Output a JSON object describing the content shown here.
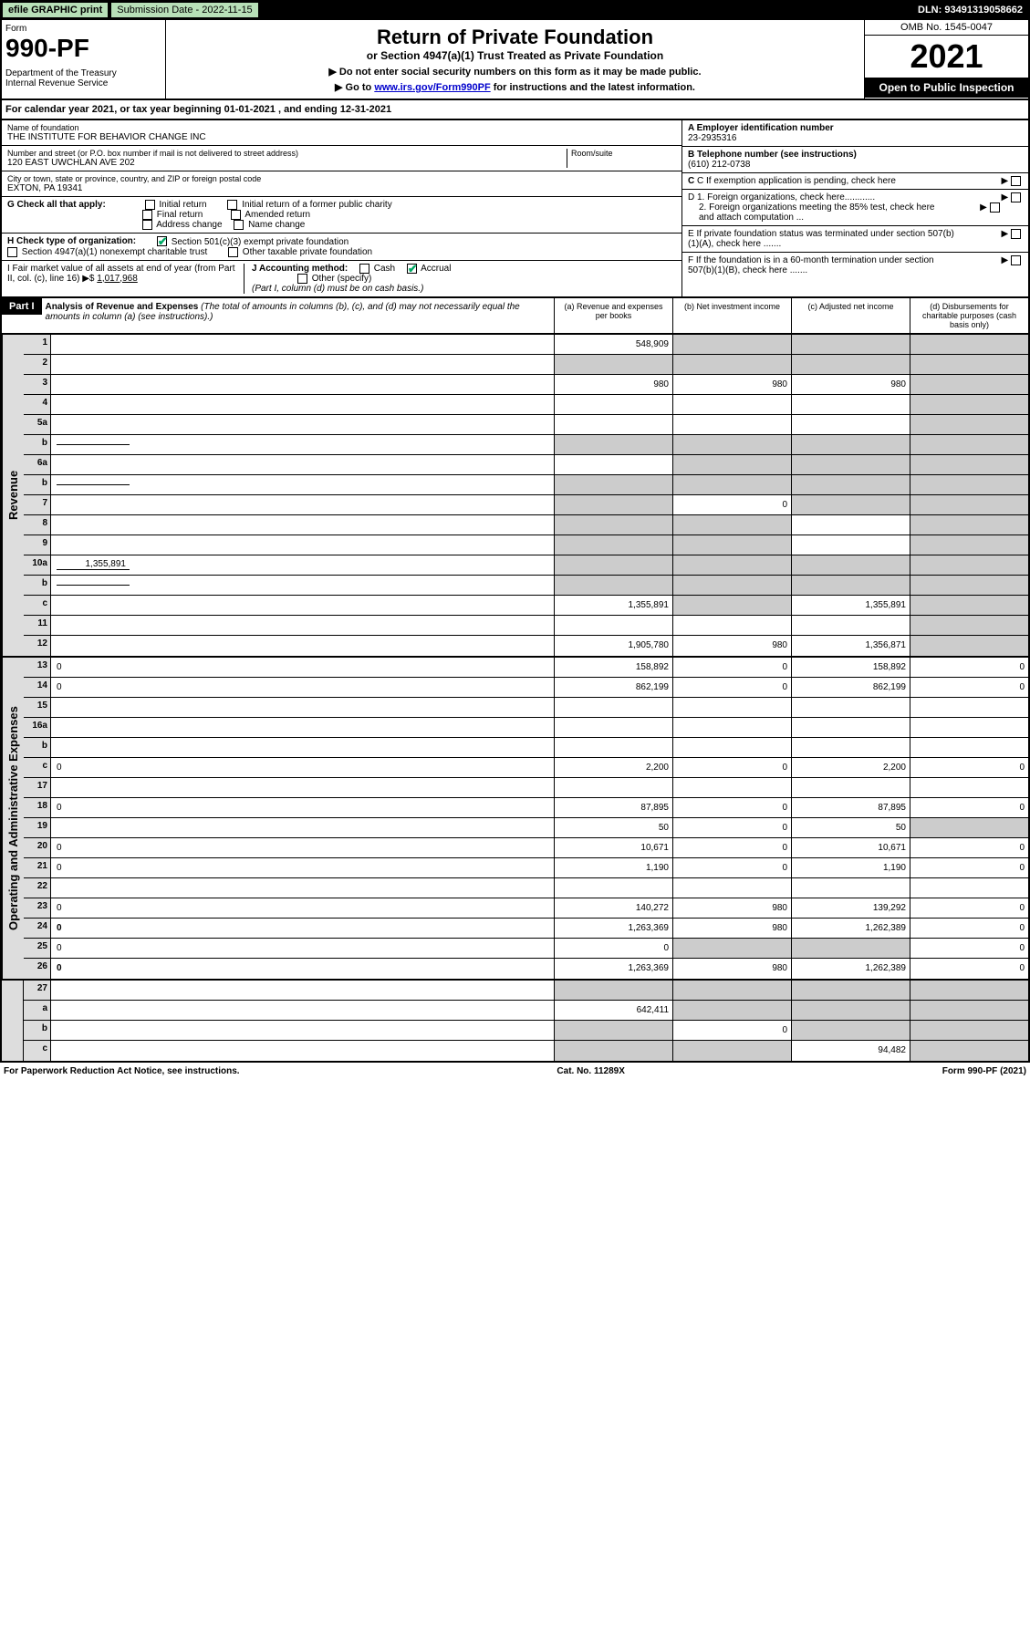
{
  "topbar": {
    "efile": "efile GRAPHIC print",
    "submission": "Submission Date - 2022-11-15",
    "dln": "DLN: 93491319058662"
  },
  "header": {
    "form_label": "Form",
    "form_no": "990-PF",
    "dept": "Department of the Treasury\nInternal Revenue Service",
    "title": "Return of Private Foundation",
    "subtitle": "or Section 4947(a)(1) Trust Treated as Private Foundation",
    "note1": "▶ Do not enter social security numbers on this form as it may be made public.",
    "note2_pre": "▶ Go to ",
    "note2_link": "www.irs.gov/Form990PF",
    "note2_post": " for instructions and the latest information.",
    "omb": "OMB No. 1545-0047",
    "year": "2021",
    "open": "Open to Public Inspection"
  },
  "cal_year": "For calendar year 2021, or tax year beginning 01-01-2021            , and ending 12-31-2021",
  "entity": {
    "name_label": "Name of foundation",
    "name": "THE INSTITUTE FOR BEHAVIOR CHANGE INC",
    "addr_label": "Number and street (or P.O. box number if mail is not delivered to street address)",
    "addr": "120 EAST UWCHLAN AVE 202",
    "room_label": "Room/suite",
    "city_label": "City or town, state or province, country, and ZIP or foreign postal code",
    "city": "EXTON, PA  19341",
    "ein_label": "A Employer identification number",
    "ein": "23-2935316",
    "tel_label": "B Telephone number (see instructions)",
    "tel": "(610) 212-0738",
    "c_label": "C If exemption application is pending, check here",
    "d1": "D 1. Foreign organizations, check here............",
    "d2": "2. Foreign organizations meeting the 85% test, check here and attach computation ...",
    "e": "E If private foundation status was terminated under section 507(b)(1)(A), check here .......",
    "f": "F If the foundation is in a 60-month termination under section 507(b)(1)(B), check here .......",
    "g": "G Check all that apply:",
    "g_opts": [
      "Initial return",
      "Initial return of a former public charity",
      "Final return",
      "Amended return",
      "Address change",
      "Name change"
    ],
    "h": "H Check type of organization:",
    "h1": "Section 501(c)(3) exempt private foundation",
    "h2": "Section 4947(a)(1) nonexempt charitable trust",
    "h3": "Other taxable private foundation",
    "i": "I Fair market value of all assets at end of year (from Part II, col. (c), line 16) ▶$",
    "i_val": "1,017,968",
    "j": "J Accounting method:",
    "j_cash": "Cash",
    "j_accrual": "Accrual",
    "j_other": "Other (specify)",
    "j_note": "(Part I, column (d) must be on cash basis.)"
  },
  "part1": {
    "label": "Part I",
    "title": "Analysis of Revenue and Expenses",
    "title_note": "(The total of amounts in columns (b), (c), and (d) may not necessarily equal the amounts in column (a) (see instructions).)",
    "col_a": "(a) Revenue and expenses per books",
    "col_b": "(b) Net investment income",
    "col_c": "(c) Adjusted net income",
    "col_d": "(d) Disbursements for charitable purposes (cash basis only)"
  },
  "sections": {
    "revenue": "Revenue",
    "expenses": "Operating and Administrative Expenses"
  },
  "lines": [
    {
      "n": "1",
      "d": "",
      "a": "548,909",
      "b": "",
      "c": "",
      "sb": true,
      "sc": true,
      "sd": true
    },
    {
      "n": "2",
      "d": "",
      "a": "",
      "b": "",
      "c": "",
      "sa": true,
      "sb": true,
      "sc": true,
      "sd": true
    },
    {
      "n": "3",
      "d": "",
      "a": "980",
      "b": "980",
      "c": "980",
      "sd": true
    },
    {
      "n": "4",
      "d": "",
      "a": "",
      "b": "",
      "c": "",
      "sd": true
    },
    {
      "n": "5a",
      "d": "",
      "a": "",
      "b": "",
      "c": "",
      "sd": true
    },
    {
      "n": "b",
      "d": "",
      "a": "",
      "b": "",
      "c": "",
      "sa": true,
      "sb": true,
      "sc": true,
      "sd": true,
      "inline": true
    },
    {
      "n": "6a",
      "d": "",
      "a": "",
      "b": "",
      "c": "",
      "sb": true,
      "sc": true,
      "sd": true
    },
    {
      "n": "b",
      "d": "",
      "a": "",
      "b": "",
      "c": "",
      "sa": true,
      "sb": true,
      "sc": true,
      "sd": true,
      "inline": true
    },
    {
      "n": "7",
      "d": "",
      "a": "",
      "b": "0",
      "c": "",
      "sa": true,
      "sc": true,
      "sd": true
    },
    {
      "n": "8",
      "d": "",
      "a": "",
      "b": "",
      "c": "",
      "sa": true,
      "sb": true,
      "sd": true
    },
    {
      "n": "9",
      "d": "",
      "a": "",
      "b": "",
      "c": "",
      "sa": true,
      "sb": true,
      "sd": true
    },
    {
      "n": "10a",
      "d": "",
      "a": "",
      "b": "",
      "c": "",
      "sa": true,
      "sb": true,
      "sc": true,
      "sd": true,
      "inline": true,
      "inline_val": "1,355,891"
    },
    {
      "n": "b",
      "d": "",
      "a": "",
      "b": "",
      "c": "",
      "sa": true,
      "sb": true,
      "sc": true,
      "sd": true,
      "inline": true
    },
    {
      "n": "c",
      "d": "",
      "a": "1,355,891",
      "b": "",
      "c": "1,355,891",
      "sb": true,
      "sd": true
    },
    {
      "n": "11",
      "d": "",
      "a": "",
      "b": "",
      "c": "",
      "sd": true
    },
    {
      "n": "12",
      "d": "",
      "a": "1,905,780",
      "b": "980",
      "c": "1,356,871",
      "bold": true,
      "sd": true
    }
  ],
  "exp_lines": [
    {
      "n": "13",
      "d": "0",
      "a": "158,892",
      "b": "0",
      "c": "158,892"
    },
    {
      "n": "14",
      "d": "0",
      "a": "862,199",
      "b": "0",
      "c": "862,199"
    },
    {
      "n": "15",
      "d": "",
      "a": "",
      "b": "",
      "c": ""
    },
    {
      "n": "16a",
      "d": "",
      "a": "",
      "b": "",
      "c": ""
    },
    {
      "n": "b",
      "d": "",
      "a": "",
      "b": "",
      "c": ""
    },
    {
      "n": "c",
      "d": "0",
      "a": "2,200",
      "b": "0",
      "c": "2,200"
    },
    {
      "n": "17",
      "d": "",
      "a": "",
      "b": "",
      "c": ""
    },
    {
      "n": "18",
      "d": "0",
      "a": "87,895",
      "b": "0",
      "c": "87,895"
    },
    {
      "n": "19",
      "d": "",
      "a": "50",
      "b": "0",
      "c": "50",
      "sd": true
    },
    {
      "n": "20",
      "d": "0",
      "a": "10,671",
      "b": "0",
      "c": "10,671"
    },
    {
      "n": "21",
      "d": "0",
      "a": "1,190",
      "b": "0",
      "c": "1,190"
    },
    {
      "n": "22",
      "d": "",
      "a": "",
      "b": "",
      "c": ""
    },
    {
      "n": "23",
      "d": "0",
      "a": "140,272",
      "b": "980",
      "c": "139,292"
    },
    {
      "n": "24",
      "d": "0",
      "a": "1,263,369",
      "b": "980",
      "c": "1,262,389",
      "bold": true
    },
    {
      "n": "25",
      "d": "0",
      "a": "0",
      "b": "",
      "c": "",
      "sb": true,
      "sc": true
    },
    {
      "n": "26",
      "d": "0",
      "a": "1,263,369",
      "b": "980",
      "c": "1,262,389",
      "bold": true
    }
  ],
  "bottom_lines": [
    {
      "n": "27",
      "d": "",
      "a": "",
      "b": "",
      "c": "",
      "sa": true,
      "sb": true,
      "sc": true,
      "sd": true
    },
    {
      "n": "a",
      "d": "",
      "a": "642,411",
      "b": "",
      "c": "",
      "bold": true,
      "sb": true,
      "sc": true,
      "sd": true
    },
    {
      "n": "b",
      "d": "",
      "a": "",
      "b": "0",
      "c": "",
      "bold": true,
      "sa": true,
      "sc": true,
      "sd": true
    },
    {
      "n": "c",
      "d": "",
      "a": "",
      "b": "",
      "c": "94,482",
      "bold": true,
      "sa": true,
      "sb": true,
      "sd": true
    }
  ],
  "footer": {
    "left": "For Paperwork Reduction Act Notice, see instructions.",
    "mid": "Cat. No. 11289X",
    "right": "Form 990-PF (2021)"
  }
}
